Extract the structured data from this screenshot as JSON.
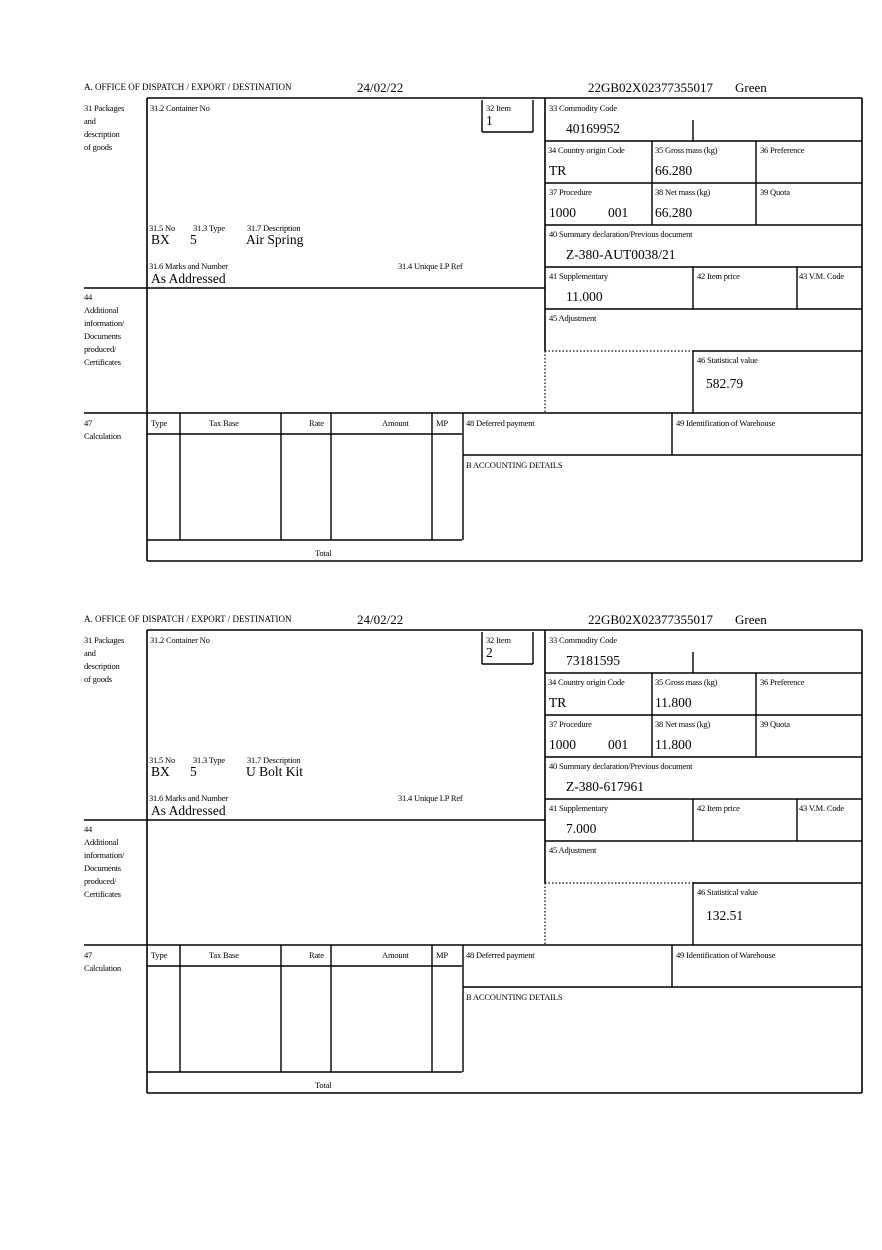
{
  "document_title": "",
  "labels": {
    "office": "A.  OFFICE OF DISPATCH / EXPORT / DESTINATION",
    "packages": [
      "31 Packages",
      "and",
      "description",
      "of goods"
    ],
    "container_no": "31.2 Container No",
    "item": "32 Item",
    "no": "31.5 No",
    "type": "31.3 Type",
    "description": "31.7 Description",
    "marks": "31.6 Marks and Number",
    "unique_lp": "31.4 Unique LP Ref",
    "additional": [
      "44",
      "Additional",
      "information/",
      "Documents",
      "produced/",
      "Certificates"
    ],
    "commodity_code": "33 Commodity Code",
    "country_origin": "34 Country origin Code",
    "gross_mass": "35 Gross mass (kg)",
    "preference": "36 Preference",
    "procedure": "37 Procedure",
    "net_mass": "38 Net mass (kg)",
    "quota": "39 Quota",
    "summary_decl": "40 Summary declaration/Previous document",
    "supplementary": "41 Supplementary",
    "item_price": "42 Item price",
    "vm_code": "43 V.M. Code",
    "adjustment": "45 Adjustment",
    "stat_value": "46 Statistical value",
    "calculation": [
      "47",
      "Calculation"
    ],
    "calc_cols": [
      "Type",
      "Tax Base",
      "Rate",
      "Amount",
      "MP"
    ],
    "total": "Total",
    "deferred": "48 Deferred payment",
    "warehouse": "49 Identification of Warehouse",
    "accounting": "B ACCOUNTING DETAILS"
  },
  "items": [
    {
      "date": "24/02/22",
      "reference": "22GB02X02377355017",
      "route": "Green",
      "item_no": "1",
      "pkg_no": "BX",
      "pkg_type": "5",
      "description": "Air Spring",
      "marks": "As Addressed",
      "commodity_code": "40169952",
      "country_origin": "TR",
      "gross_mass": "66.280",
      "procedure": "1000",
      "procedure_add": "001",
      "net_mass": "66.280",
      "summary_decl": "Z-380-AUT0038/21",
      "supplementary": "11.000",
      "stat_value": "582.79"
    },
    {
      "date": "24/02/22",
      "reference": "22GB02X02377355017",
      "route": "Green",
      "item_no": "2",
      "pkg_no": "BX",
      "pkg_type": "5",
      "description": "U Bolt Kit",
      "marks": "As Addressed",
      "commodity_code": "73181595",
      "country_origin": "TR",
      "gross_mass": "11.800",
      "procedure": "1000",
      "procedure_add": "001",
      "net_mass": "11.800",
      "summary_decl": "Z-380-617961",
      "supplementary": "7.000",
      "stat_value": "132.51"
    }
  ]
}
